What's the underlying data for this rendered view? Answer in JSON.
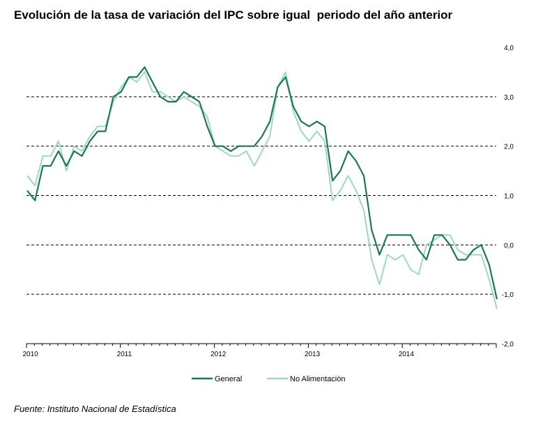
{
  "title": "Evolución de la tasa de variación del IPC sobre igual  periodo del año anterior",
  "source": "Fuente: Instituto Nacional de Estadística",
  "chart_data": {
    "type": "line",
    "y_ticks": [
      "4,0",
      "3,0",
      "2,0",
      "1,0",
      "0,0",
      "-1,0",
      "-2,0"
    ],
    "ylim": [
      -2,
      4
    ],
    "x_tick_labels": [
      "2010",
      "2011",
      "2012",
      "2013",
      "2014"
    ],
    "x_start": "2010-01",
    "grid": "dashed horizontal at 3,0 2,0 1,0 0,0 -1,0",
    "legend_position": "bottom-center",
    "series": [
      {
        "name": "General",
        "color": "#1a7a4a",
        "values": [
          1.1,
          0.9,
          1.6,
          1.6,
          1.9,
          1.6,
          1.9,
          1.8,
          2.1,
          2.3,
          2.3,
          3.0,
          3.1,
          3.4,
          3.4,
          3.6,
          3.3,
          3.0,
          2.9,
          2.9,
          3.1,
          3.0,
          2.9,
          2.4,
          2.0,
          2.0,
          1.9,
          2.0,
          2.0,
          2.0,
          2.2,
          2.5,
          3.2,
          3.4,
          2.8,
          2.5,
          2.4,
          2.5,
          2.4,
          1.3,
          1.5,
          1.9,
          1.7,
          1.4,
          0.3,
          -0.2,
          0.2,
          0.2,
          0.2,
          0.2,
          -0.1,
          -0.3,
          0.2,
          0.2,
          0.0,
          -0.3,
          -0.3,
          -0.1,
          0.0,
          -0.4,
          -1.1
        ]
      },
      {
        "name": "No Alimentación",
        "color": "#9fd8be",
        "values": [
          1.4,
          1.2,
          1.8,
          1.8,
          2.1,
          1.5,
          2.0,
          1.9,
          2.2,
          2.4,
          2.4,
          2.9,
          3.2,
          3.4,
          3.3,
          3.5,
          3.1,
          3.1,
          3.0,
          2.9,
          3.0,
          2.9,
          2.8,
          2.6,
          2.0,
          1.9,
          1.8,
          1.8,
          1.9,
          1.6,
          1.9,
          2.2,
          3.2,
          3.5,
          2.7,
          2.3,
          2.1,
          2.3,
          2.1,
          0.9,
          1.1,
          1.4,
          1.1,
          0.7,
          -0.3,
          -0.8,
          -0.2,
          -0.3,
          -0.2,
          -0.5,
          -0.6,
          0.0,
          0.1,
          0.2,
          0.2,
          -0.1,
          -0.2,
          -0.2,
          -0.2,
          -0.7,
          -1.3
        ]
      }
    ]
  }
}
